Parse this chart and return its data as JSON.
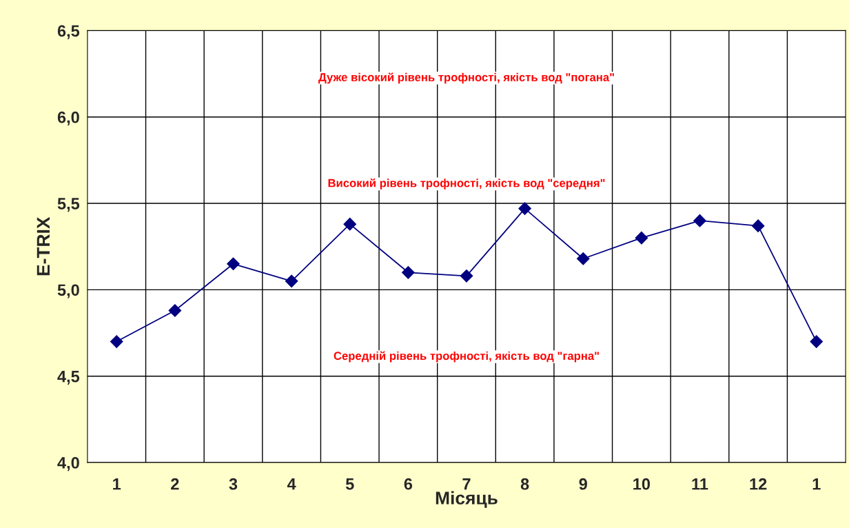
{
  "chart_data": {
    "type": "line",
    "xlabel": "Місяць",
    "ylabel": "E-TRIX",
    "categories": [
      "1",
      "2",
      "3",
      "4",
      "5",
      "6",
      "7",
      "8",
      "9",
      "10",
      "11",
      "12",
      "1"
    ],
    "series": [
      {
        "color": "#000080",
        "values": [
          4.7,
          4.88,
          5.15,
          5.05,
          5.38,
          5.1,
          5.08,
          5.47,
          5.18,
          5.3,
          5.4,
          5.37,
          4.7
        ]
      }
    ],
    "ylim": [
      4.0,
      6.5
    ],
    "yticks": [
      {
        "value": 4.0,
        "label": "4,0"
      },
      {
        "value": 4.5,
        "label": "4,5"
      },
      {
        "value": 5.0,
        "label": "5,0"
      },
      {
        "value": 5.5,
        "label": "5,5"
      },
      {
        "value": 6.0,
        "label": "6,0"
      },
      {
        "value": 6.5,
        "label": "6,5"
      }
    ],
    "annotations": [
      "Дуже вісокий рівень трофності, якість вод \"погана\"",
      "Високий рівень трофності, якість вод \"середня\"",
      "Середній рівень трофності, якість вод \"гарна\""
    ],
    "grid": true,
    "marker": "diamond",
    "line_style": "solid",
    "legend": false
  }
}
